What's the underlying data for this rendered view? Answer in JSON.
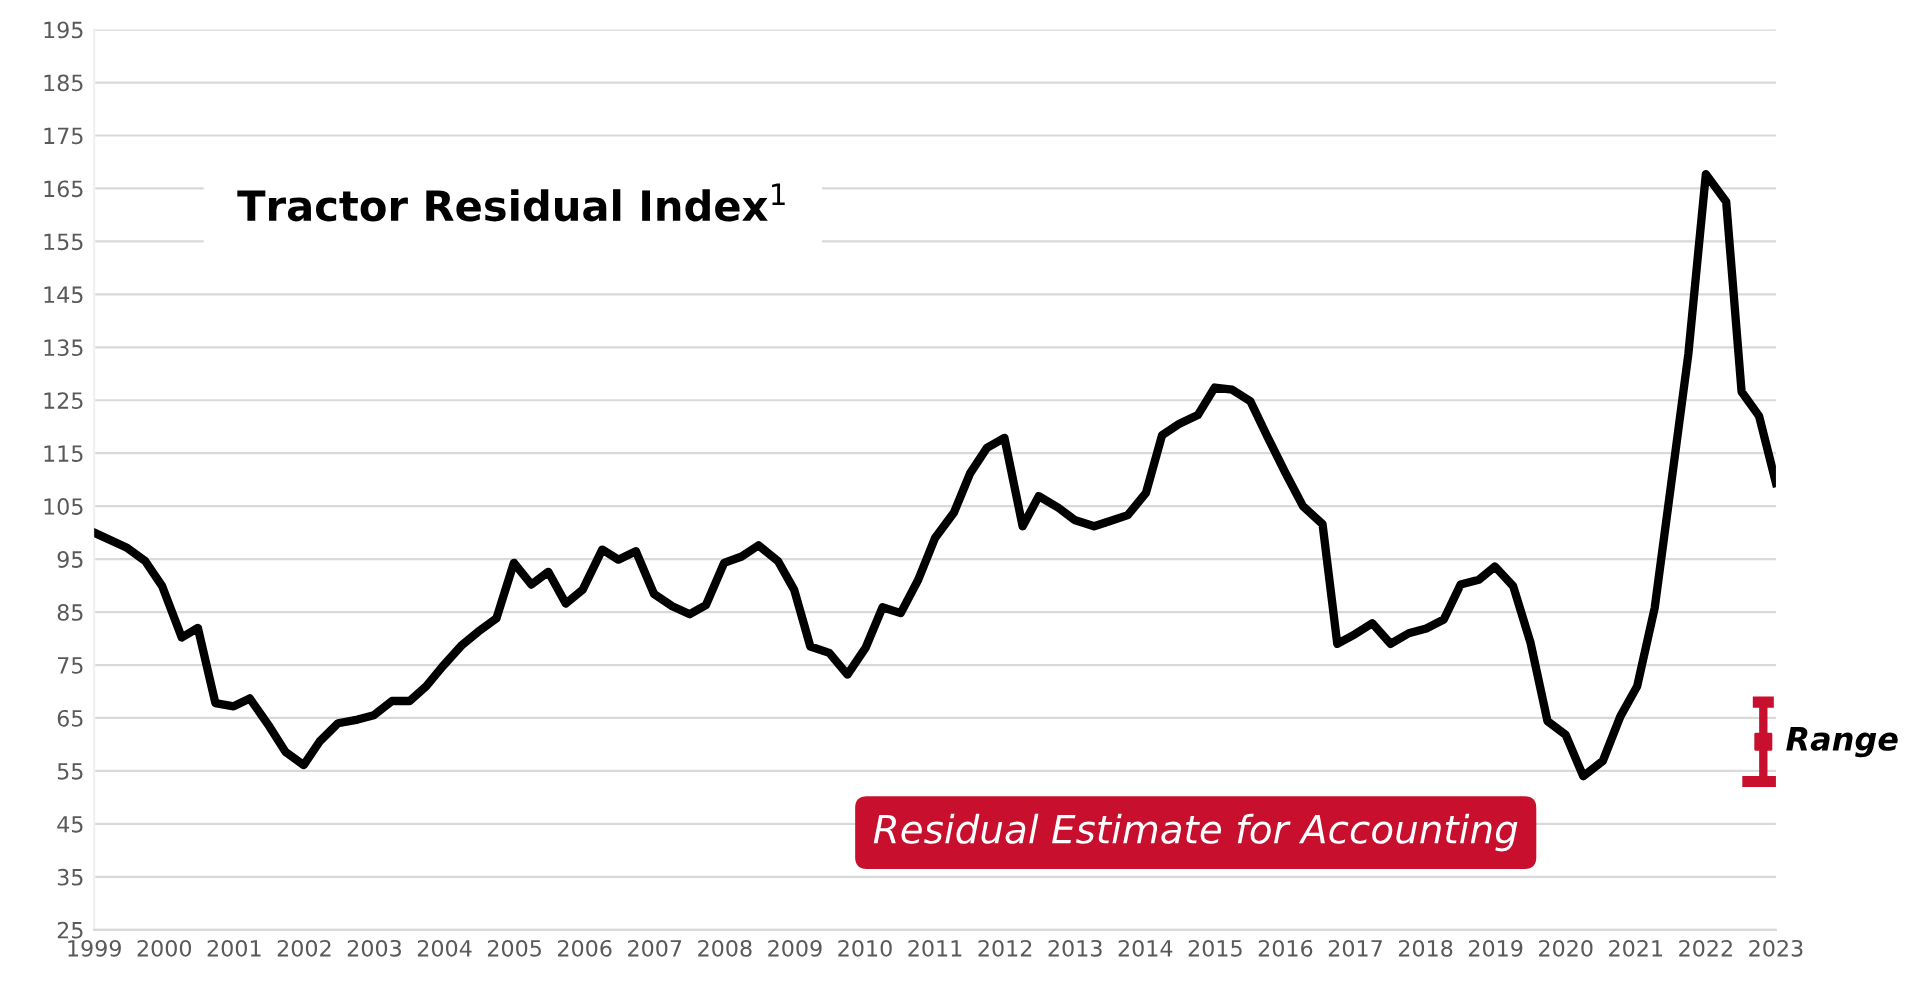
{
  "chart_data": {
    "type": "line",
    "title": "Tractor Residual Index$^{1}$",
    "x": [
      1999.0,
      1999.46,
      1999.73,
      1999.97,
      2000.25,
      2000.48,
      2000.73,
      2000.99,
      2001.22,
      2001.5,
      2001.73,
      2001.99,
      2002.22,
      2002.48,
      2002.76,
      2002.99,
      2003.25,
      2003.5,
      2003.74,
      2003.97,
      2004.25,
      2004.48,
      2004.74,
      2004.99,
      2005.24,
      2005.48,
      2005.73,
      2005.97,
      2006.25,
      2006.48,
      2006.73,
      2006.99,
      2007.25,
      2007.5,
      2007.73,
      2007.99,
      2008.24,
      2008.48,
      2008.76,
      2008.99,
      2009.22,
      2009.49,
      2009.75,
      2010.01,
      2010.25,
      2010.51,
      2010.76,
      2011.0,
      2011.27,
      2011.5,
      2011.74,
      2011.99,
      2012.25,
      2012.48,
      2012.76,
      2012.99,
      2013.27,
      2013.5,
      2013.75,
      2014.01,
      2014.24,
      2014.48,
      2014.75,
      2014.99,
      2015.24,
      2015.5,
      2015.74,
      2016.0,
      2016.25,
      2016.53,
      2016.74,
      2016.99,
      2017.24,
      2017.5,
      2017.76,
      2018.01,
      2018.26,
      2018.5,
      2018.76,
      2018.99,
      2019.25,
      2019.5,
      2019.74,
      2020.0,
      2020.25,
      2020.53,
      2020.78,
      2021.02,
      2021.27,
      2021.5,
      2021.75,
      2022.0,
      2022.29,
      2022.51,
      2022.76,
      2023.0
    ],
    "series": [
      {
        "color": "#000000",
        "values": [
          100,
          97.2,
          94.6,
          89.9,
          80.2,
          82,
          67.8,
          67.2,
          68.7,
          63.4,
          58.6,
          56.1,
          60.6,
          64,
          64.7,
          65.5,
          68.2,
          68.2,
          71,
          74.7,
          78.8,
          81.3,
          83.8,
          94.3,
          90.2,
          92.6,
          86.6,
          89.2,
          96.8,
          94.9,
          96.5,
          88.4,
          86.1,
          84.6,
          86.3,
          94.3,
          95.5,
          97.6,
          94.6,
          89.2,
          78.5,
          77.3,
          73.2,
          78.3,
          85.9,
          84.8,
          91.1,
          99,
          103.8,
          111.2,
          116,
          117.9,
          101.2,
          106.9,
          104.7,
          102.4,
          101.2,
          102.2,
          103.3,
          107.5,
          118.4,
          120.5,
          122.2,
          127.4,
          127,
          124.8,
          118.2,
          111.3,
          105,
          101.6,
          79,
          80.8,
          82.9,
          79,
          81,
          81.9,
          83.6,
          90.2,
          91.1,
          93.6,
          89.9,
          79.1,
          64.4,
          61.8,
          54,
          56.9,
          65.3,
          71,
          85.8,
          108.7,
          133.7,
          167.7,
          162.5,
          126.6,
          122,
          109.4
        ]
      },
      {
        "type": "scatter",
        "marker": "square",
        "color": "#c8102e",
        "x": [
          2022.82
        ],
        "values": [
          60.5
        ],
        "errors": [
          [
            53,
            68
          ]
        ]
      }
    ],
    "annotations": [
      {
        "text": "Range",
        "x": 2022.82,
        "y": 60.5
      },
      "Residual Estimate for Accounting"
    ],
    "xlim": [
      1999,
      2023
    ],
    "xticks": [
      1999,
      2000,
      2001,
      2002,
      2003,
      2004,
      2005,
      2006,
      2007,
      2008,
      2009,
      2010,
      2011,
      2012,
      2013,
      2014,
      2015,
      2016,
      2017,
      2018,
      2019,
      2020,
      2021,
      2022,
      2023
    ],
    "ylim": [
      25,
      195
    ],
    "yticks": [
      25,
      35,
      45,
      55,
      65,
      75,
      85,
      95,
      105,
      115,
      125,
      135,
      145,
      155,
      165,
      175,
      185,
      195
    ],
    "grid": "y",
    "line_style": "solid"
  }
}
